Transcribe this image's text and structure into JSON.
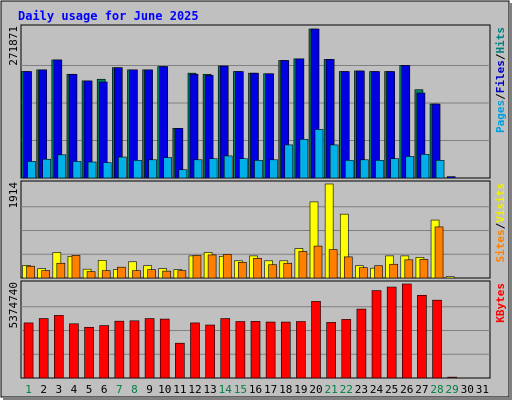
{
  "chart_data": {
    "type": "bar",
    "title": "Daily usage for June 2025",
    "categories": [
      "1",
      "2",
      "3",
      "4",
      "5",
      "6",
      "7",
      "8",
      "9",
      "10",
      "11",
      "12",
      "13",
      "14",
      "15",
      "16",
      "17",
      "18",
      "19",
      "20",
      "21",
      "22",
      "23",
      "24",
      "25",
      "26",
      "27",
      "28",
      "29",
      "30",
      "31"
    ],
    "weekend_days": [
      "1",
      "7",
      "8",
      "14",
      "15",
      "21",
      "22",
      "28",
      "29"
    ],
    "panels": [
      {
        "id": "hits-files-pages",
        "ymax_label": "271871",
        "ymax": 271871,
        "right_label": [
          "Pages",
          "/",
          "Files",
          "/",
          "Hits"
        ],
        "right_colors": [
          "#00a0e0",
          "#000000",
          "#0000c0",
          "#000000",
          "#008080"
        ],
        "series": [
          {
            "name": "Hits",
            "color": "#008060",
            "values": [
              193000,
              196000,
              214000,
              188000,
              176000,
              179000,
              200000,
              196000,
              196000,
              202000,
              90000,
              190000,
              188000,
              203000,
              193000,
              190000,
              189000,
              213000,
              216000,
              270000,
              215000,
              193000,
              194000,
              193000,
              193000,
              204000,
              160000,
              134000,
              0,
              0,
              0
            ]
          },
          {
            "name": "Files",
            "color": "#0000e0",
            "values": [
              193000,
              196000,
              214000,
              188000,
              176000,
              174000,
              200000,
              196000,
              196000,
              202000,
              90000,
              188000,
              186000,
              203000,
              193000,
              190000,
              189000,
              213000,
              216000,
              270000,
              215000,
              193000,
              194000,
              193000,
              193000,
              204000,
              154000,
              134000,
              2500,
              0,
              0
            ]
          },
          {
            "name": "Pages",
            "color": "#00b0e8",
            "values": [
              30000,
              34000,
              42000,
              30000,
              29000,
              28000,
              38000,
              32000,
              33000,
              37000,
              15000,
              33000,
              35000,
              40000,
              35000,
              32000,
              33000,
              60000,
              70000,
              88000,
              60000,
              32000,
              33000,
              32000,
              35000,
              39000,
              43000,
              32000,
              0,
              0,
              0
            ]
          }
        ]
      },
      {
        "id": "visits-sites",
        "ymax_label": "1914",
        "ymax": 1914,
        "right_label": [
          "Sites",
          "/",
          "Visits"
        ],
        "right_colors": [
          "#ff8000",
          "#000000",
          "#f0f000"
        ],
        "series": [
          {
            "name": "Visits",
            "color": "#ffff00",
            "values": [
              255,
              190,
              520,
              440,
              180,
              360,
              170,
              330,
              250,
              190,
              170,
              450,
              520,
              440,
              350,
              450,
              350,
              350,
              600,
              1550,
              1914,
              1300,
              250,
              200,
              450,
              450,
              420,
              1180,
              26,
              0,
              0
            ]
          },
          {
            "name": "Sites",
            "color": "#ff8000",
            "values": [
              240,
              150,
              300,
              460,
              130,
              150,
              220,
              150,
              170,
              140,
              150,
              460,
              470,
              480,
              320,
              400,
              270,
              300,
              540,
              650,
              580,
              430,
              210,
              250,
              280,
              370,
              380,
              1040,
              0,
              0,
              0
            ]
          }
        ]
      },
      {
        "id": "kbytes",
        "ymax_label": "5374740",
        "ymax": 5374740,
        "right_label": [
          "KBytes"
        ],
        "right_colors": [
          "#ff0000"
        ],
        "series": [
          {
            "name": "KBytes",
            "color": "#ff0000",
            "values": [
              3150000,
              3400000,
              3580000,
              3100000,
              2900000,
              3000000,
              3250000,
              3270000,
              3400000,
              3370000,
              1990000,
              3150000,
              3030000,
              3400000,
              3230000,
              3240000,
              3200000,
              3200000,
              3230000,
              4380000,
              3180000,
              3350000,
              3940000,
              5000000,
              5200000,
              5374740,
              4730000,
              4450000,
              50000,
              0,
              0
            ]
          }
        ]
      }
    ]
  }
}
